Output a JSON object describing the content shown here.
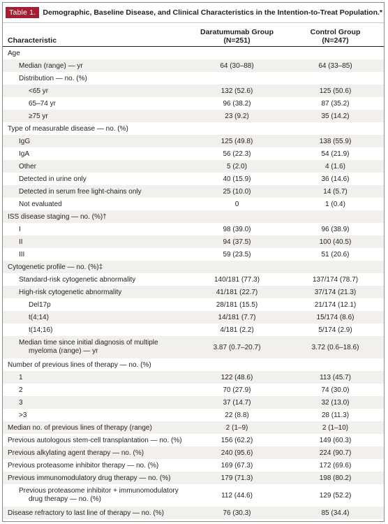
{
  "table": {
    "label": "Table 1.",
    "title": "Demographic, Baseline Disease, and Clinical Characteristics in the Intention-to-Treat Population.*",
    "headers": {
      "characteristic": "Characteristic",
      "group1_name": "Daratumumab Group",
      "group1_n": "(N=251)",
      "group2_name": "Control Group",
      "group2_n": "(N=247)"
    },
    "rows": [
      {
        "label": "Age",
        "dara": "",
        "control": ""
      },
      {
        "label": "Median (range) — yr",
        "dara": "64 (30–88)",
        "control": "64 (33–85)"
      },
      {
        "label": "Distribution — no. (%)",
        "dara": "",
        "control": ""
      },
      {
        "label": "<65 yr",
        "dara": "132 (52.6)",
        "control": "125 (50.6)"
      },
      {
        "label": "65–74 yr",
        "dara": "96 (38.2)",
        "control": "87 (35.2)"
      },
      {
        "label": "≥75 yr",
        "dara": "23 (9.2)",
        "control": "35 (14.2)"
      },
      {
        "label": "Type of measurable disease — no. (%)",
        "dara": "",
        "control": ""
      },
      {
        "label": "IgG",
        "dara": "125 (49.8)",
        "control": "138 (55.9)"
      },
      {
        "label": "IgA",
        "dara": "56 (22.3)",
        "control": "54 (21.9)"
      },
      {
        "label": "Other",
        "dara": "5 (2.0)",
        "control": "4 (1.6)"
      },
      {
        "label": "Detected in urine only",
        "dara": "40 (15.9)",
        "control": "36 (14.6)"
      },
      {
        "label": "Detected in serum free light-chains only",
        "dara": "25 (10.0)",
        "control": "14 (5.7)"
      },
      {
        "label": "Not evaluated",
        "dara": "0",
        "control": "1 (0.4)"
      },
      {
        "label": "ISS disease staging — no. (%)†",
        "dara": "",
        "control": ""
      },
      {
        "label": "I",
        "dara": "98 (39.0)",
        "control": "96 (38.9)"
      },
      {
        "label": "II",
        "dara": "94 (37.5)",
        "control": "100 (40.5)"
      },
      {
        "label": "III",
        "dara": "59 (23.5)",
        "control": "51 (20.6)"
      },
      {
        "label": "Cytogenetic profile — no. (%)‡",
        "dara": "",
        "control": ""
      },
      {
        "label": "Standard-risk cytogenetic abnormality",
        "dara": "140/181 (77.3)",
        "control": "137/174 (78.7)"
      },
      {
        "label": "High-risk cytogenetic abnormality",
        "dara": "41/181 (22.7)",
        "control": "37/174 (21.3)"
      },
      {
        "label": "Del17p",
        "dara": "28/181 (15.5)",
        "control": "21/174 (12.1)"
      },
      {
        "label": "t(4;14)",
        "dara": "14/181 (7.7)",
        "control": "15/174 (8.6)"
      },
      {
        "label": "t(14;16)",
        "dara": "4/181 (2.2)",
        "control": "5/174 (2.9)"
      },
      {
        "label": "Median time since initial diagnosis of multiple myeloma (range) — yr",
        "dara": "3.87 (0.7–20.7)",
        "control": "3.72 (0.6–18.6)"
      },
      {
        "label": "Number of previous lines of therapy — no. (%)",
        "dara": "",
        "control": ""
      },
      {
        "label": "1",
        "dara": "122 (48.6)",
        "control": "113 (45.7)"
      },
      {
        "label": "2",
        "dara": "70 (27.9)",
        "control": "74 (30.0)"
      },
      {
        "label": "3",
        "dara": "37 (14.7)",
        "control": "32 (13.0)"
      },
      {
        "label": ">3",
        "dara": "22 (8.8)",
        "control": "28 (11.3)"
      },
      {
        "label": "Median no. of previous lines of therapy (range)",
        "dara": "2 (1–9)",
        "control": "2 (1–10)"
      },
      {
        "label": "Previous autologous stem-cell transplantation — no. (%)",
        "dara": "156 (62.2)",
        "control": "149 (60.3)"
      },
      {
        "label": "Previous alkylating agent therapy — no. (%)",
        "dara": "240 (95.6)",
        "control": "224 (90.7)"
      },
      {
        "label": "Previous proteasome inhibitor therapy — no. (%)",
        "dara": "169 (67.3)",
        "control": "172 (69.6)"
      },
      {
        "label": "Previous immunomodulatory drug therapy — no. (%)",
        "dara": "179 (71.3)",
        "control": "198 (80.2)"
      },
      {
        "label": "Previous proteasome inhibitor + immunomodulatory drug therapy — no. (%)",
        "dara": "112 (44.6)",
        "control": "129 (52.2)"
      },
      {
        "label": "Disease refractory to last line of therapy — no. (%)",
        "dara": "76 (30.3)",
        "control": "85 (34.4)"
      }
    ]
  }
}
